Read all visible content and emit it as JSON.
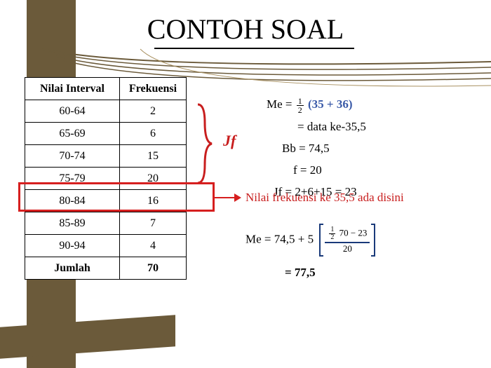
{
  "title": "CONTOH SOAL",
  "table": {
    "headers": [
      "Nilai Interval",
      "Frekuensi"
    ],
    "rows": [
      [
        "60-64",
        "2"
      ],
      [
        "65-69",
        "6"
      ],
      [
        "70-74",
        "15"
      ],
      [
        "75-79",
        "20"
      ],
      [
        "80-84",
        "16"
      ],
      [
        "85-89",
        "7"
      ],
      [
        "90-94",
        "4"
      ]
    ],
    "footer": [
      "Jumlah",
      "70"
    ],
    "highlight_row_index": 3,
    "brace_rows": [
      0,
      2
    ]
  },
  "jf_label": "Jf",
  "formulas": {
    "me_eq": {
      "prefix": "Me = ",
      "frac_n": "1",
      "frac_d": "2",
      "paren": "(35 + 36)"
    },
    "data_ke": "= data ke-35,5",
    "bb": "Bb = 74,5",
    "f": "f = 20",
    "jf": "Jf = 2+6+15 = 23",
    "arrow_text": "Nilai frekuensi ke 35,5 ada disini",
    "me2_prefix": "Me   =   74,5   +   5 ",
    "me2_top_small_n": "1",
    "me2_top_small_d": "2",
    "me2_top_rest": "70 − 23",
    "me2_bot": "20",
    "result": "=    77,5"
  },
  "colors": {
    "brown": "#6b5a3a",
    "red": "#c81e1e",
    "highlight_red": "#d61f1f",
    "blue": "#1a3a7a",
    "text_blue": "#3a5aa8"
  }
}
